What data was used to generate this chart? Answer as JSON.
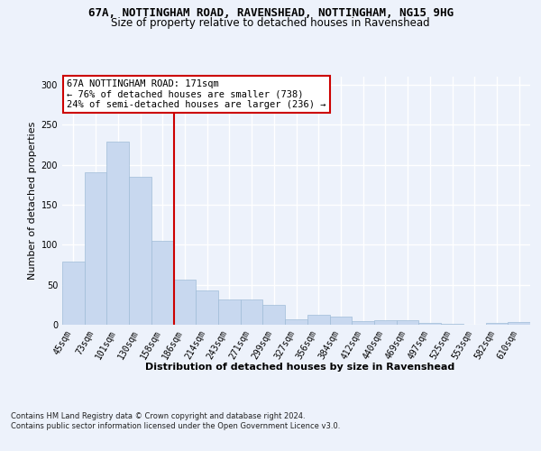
{
  "title_line1": "67A, NOTTINGHAM ROAD, RAVENSHEAD, NOTTINGHAM, NG15 9HG",
  "title_line2": "Size of property relative to detached houses in Ravenshead",
  "xlabel": "Distribution of detached houses by size in Ravenshead",
  "ylabel": "Number of detached properties",
  "categories": [
    "45sqm",
    "73sqm",
    "101sqm",
    "130sqm",
    "158sqm",
    "186sqm",
    "214sqm",
    "243sqm",
    "271sqm",
    "299sqm",
    "327sqm",
    "356sqm",
    "384sqm",
    "412sqm",
    "440sqm",
    "469sqm",
    "497sqm",
    "525sqm",
    "553sqm",
    "582sqm",
    "610sqm"
  ],
  "values": [
    79,
    190,
    229,
    185,
    105,
    56,
    43,
    32,
    32,
    25,
    7,
    12,
    10,
    4,
    6,
    6,
    2,
    1,
    0,
    2,
    3
  ],
  "bar_color": "#c8d8ef",
  "bar_edge_color": "#a0bcd8",
  "vline_x": 4.5,
  "vline_color": "#cc0000",
  "annotation_text": "67A NOTTINGHAM ROAD: 171sqm\n← 76% of detached houses are smaller (738)\n24% of semi-detached houses are larger (236) →",
  "annotation_box_color": "#ffffff",
  "annotation_box_edge": "#cc0000",
  "ylim": [
    0,
    310
  ],
  "yticks": [
    0,
    50,
    100,
    150,
    200,
    250,
    300
  ],
  "footnote": "Contains HM Land Registry data © Crown copyright and database right 2024.\nContains public sector information licensed under the Open Government Licence v3.0.",
  "bg_color": "#edf2fb",
  "plot_bg_color": "#edf2fb",
  "grid_color": "#ffffff",
  "title_fontsize": 9,
  "subtitle_fontsize": 8.5,
  "axis_label_fontsize": 8,
  "tick_fontsize": 7,
  "annotation_fontsize": 7.5,
  "footnote_fontsize": 6
}
